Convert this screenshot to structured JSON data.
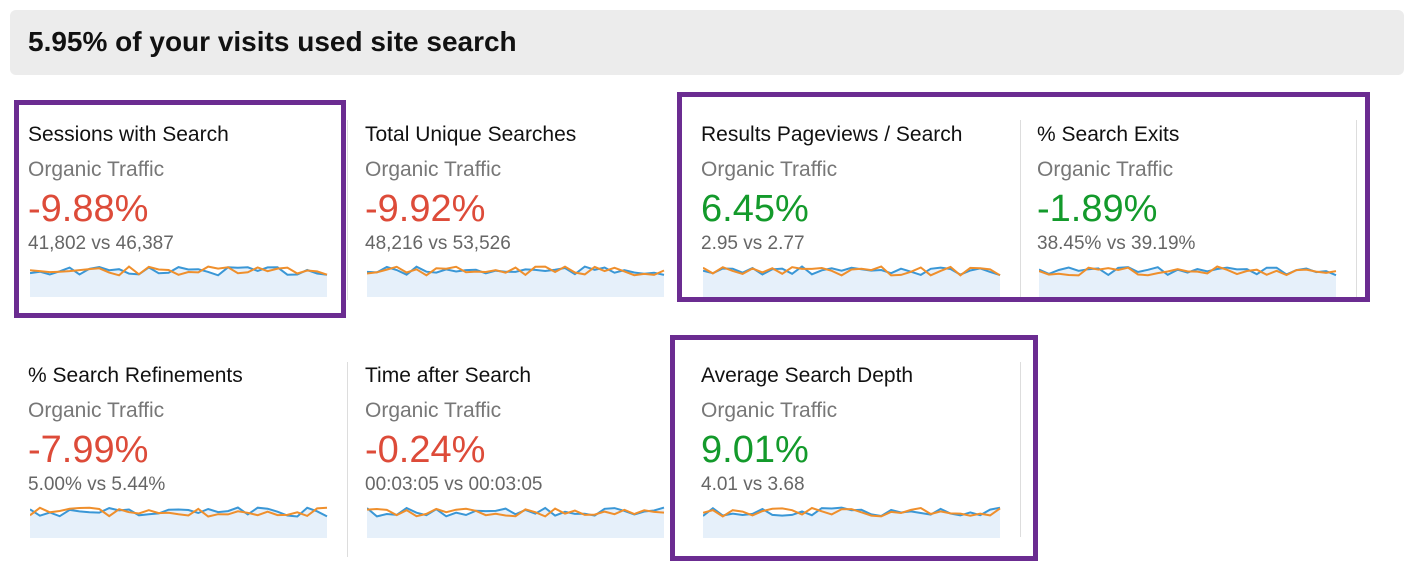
{
  "header": {
    "title": "5.95% of your visits used site search"
  },
  "tiles": [
    {
      "title": "Sessions with Search",
      "segment": "Organic Traffic",
      "change": "-9.88%",
      "comparison": "41,802 vs 46,387",
      "color": "#dd4b39"
    },
    {
      "title": "Total Unique Searches",
      "segment": "Organic Traffic",
      "change": "-9.92%",
      "comparison": "48,216 vs 53,526",
      "color": "#dd4b39"
    },
    {
      "title": "Results Pageviews / Search",
      "segment": "Organic Traffic",
      "change": "6.45%",
      "comparison": "2.95 vs 2.77",
      "color": "#139a2b"
    },
    {
      "title": "% Search Exits",
      "segment": "Organic Traffic",
      "change": "-1.89%",
      "comparison": "38.45% vs 39.19%",
      "color": "#139a2b"
    },
    {
      "title": "% Search Refinements",
      "segment": "Organic Traffic",
      "change": "-7.99%",
      "comparison": "5.00% vs 5.44%",
      "color": "#dd4b39"
    },
    {
      "title": "Time after Search",
      "segment": "Organic Traffic",
      "change": "-0.24%",
      "comparison": "00:03:05 vs 00:03:05",
      "color": "#dd4b39"
    },
    {
      "title": "Average Search Depth",
      "segment": "Organic Traffic",
      "change": "9.01%",
      "comparison": "4.01 vs 3.68",
      "color": "#139a2b"
    }
  ]
}
